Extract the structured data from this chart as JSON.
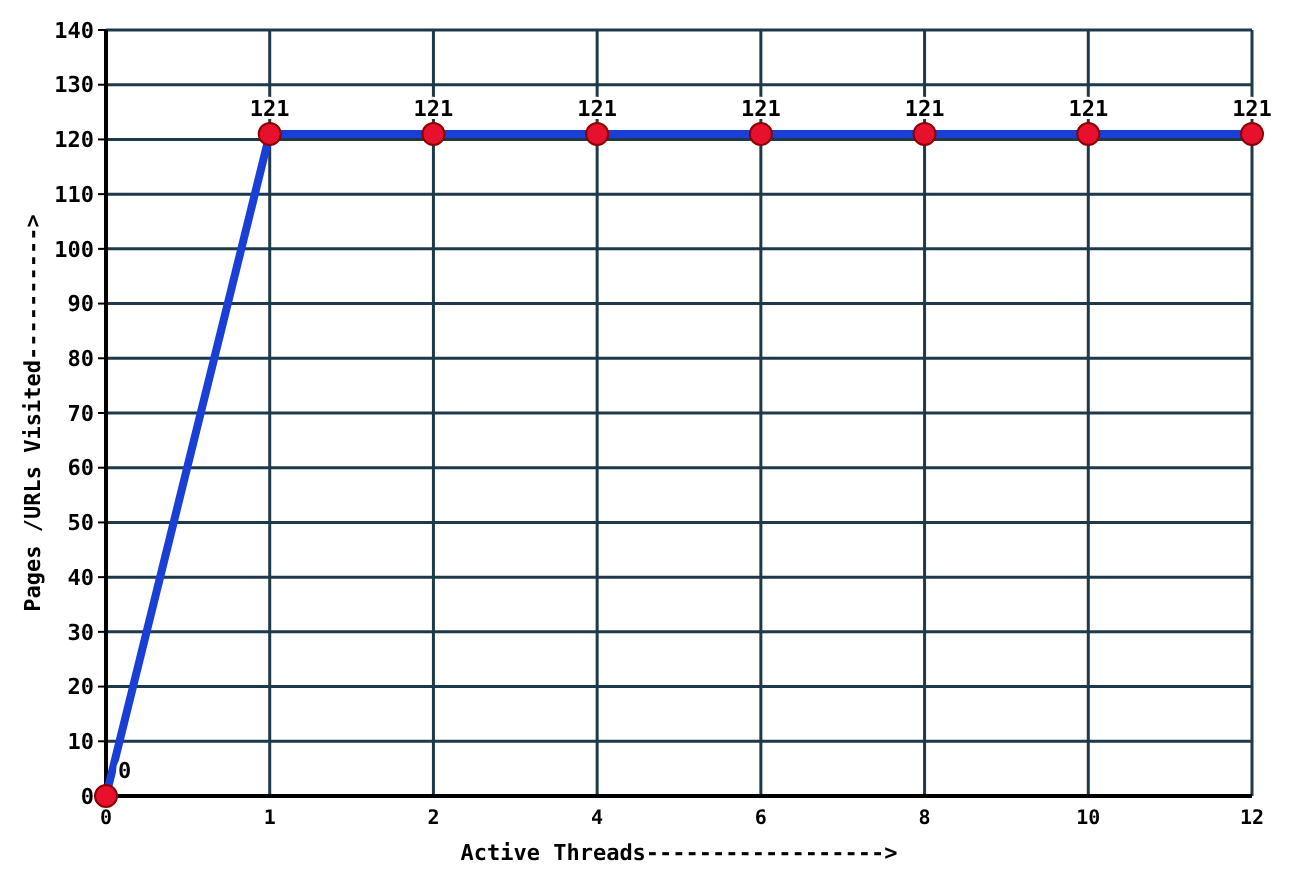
{
  "chart_data": {
    "type": "line",
    "xlabel": "Active Threads------------------>",
    "ylabel": "Pages /URLs Visited---------->",
    "categories": [
      "0",
      "1",
      "2",
      "4",
      "6",
      "8",
      "10",
      "12"
    ],
    "series": [
      {
        "color": "#1a3fd6",
        "values": [
          0,
          121,
          121,
          121,
          121,
          121,
          121,
          121
        ]
      }
    ],
    "ylim": [
      0,
      140
    ],
    "yticks": [
      0,
      10,
      20,
      30,
      40,
      50,
      60,
      70,
      80,
      90,
      100,
      110,
      120,
      130,
      140
    ],
    "grid": true,
    "marker": "circle",
    "data_labels": true,
    "line_style": "solid"
  }
}
